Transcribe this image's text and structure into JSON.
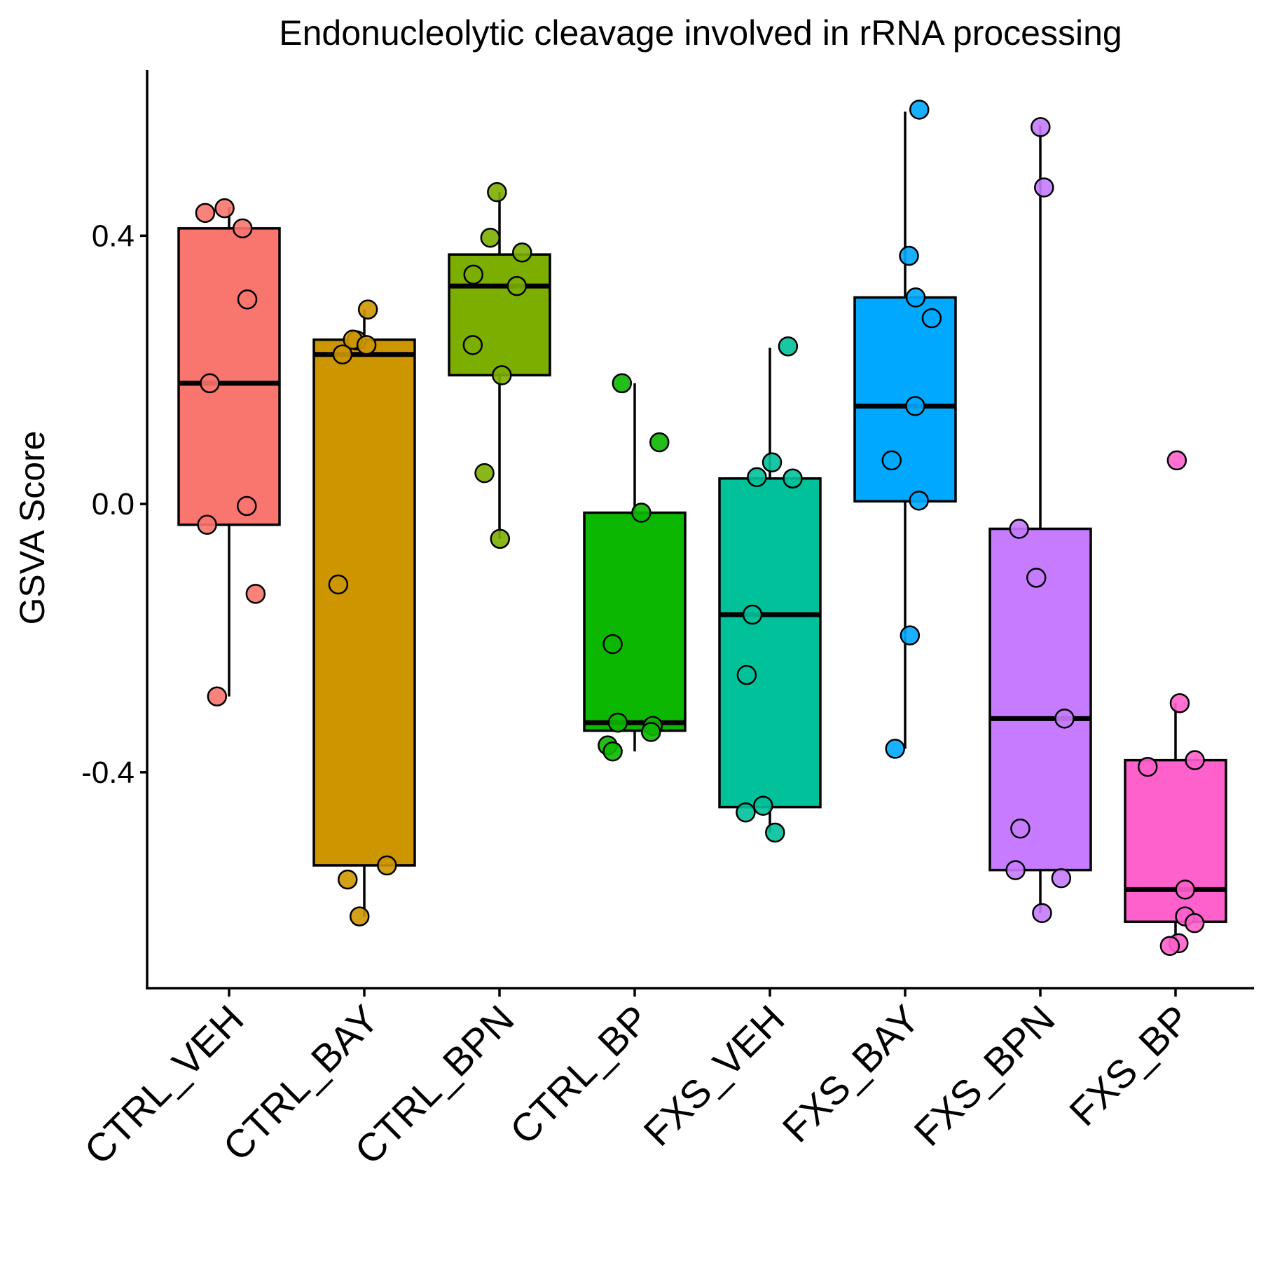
{
  "chart_data": {
    "type": "box",
    "title": "Endonucleolytic cleavage involved in rRNA processing",
    "xlabel": "",
    "ylabel": "GSVA Score",
    "ylim": [
      -0.722,
      0.647
    ],
    "yticks": [
      {
        "value": 0.4,
        "label": "0.4"
      },
      {
        "value": 0.0,
        "label": "0.0"
      },
      {
        "value": -0.4,
        "label": "-0.4"
      }
    ],
    "grid": false,
    "legend": "none",
    "categories": [
      "CTRL_VEH",
      "CTRL_BAY",
      "CTRL_BPN",
      "CTRL_BP",
      "FXS_VEH",
      "FXS_BAY",
      "FXS_BPN",
      "FXS_BP"
    ],
    "series": [
      {
        "category": "CTRL_VEH",
        "color": "#F8766D",
        "whisker_low": -0.287,
        "q1": -0.031,
        "median": 0.18,
        "q3": 0.411,
        "whisker_high": 0.443,
        "points": [
          0.411,
          0.434,
          0.441,
          0.305,
          0.18,
          -0.003,
          -0.031,
          -0.134,
          -0.287
        ]
      },
      {
        "category": "CTRL_BAY",
        "color": "#CD9600",
        "whisker_low": -0.615,
        "q1": -0.539,
        "median": 0.223,
        "q3": 0.245,
        "whisker_high": 0.29,
        "points": [
          0.29,
          0.244,
          0.245,
          0.237,
          0.223,
          -0.12,
          -0.539,
          -0.56,
          -0.615
        ]
      },
      {
        "category": "CTRL_BPN",
        "color": "#7CAE00",
        "whisker_low": -0.052,
        "q1": 0.192,
        "median": 0.325,
        "q3": 0.372,
        "whisker_high": 0.465,
        "points": [
          0.465,
          0.397,
          0.375,
          0.342,
          0.325,
          0.237,
          0.192,
          0.046,
          -0.052
        ]
      },
      {
        "category": "CTRL_BP",
        "color": "#0CB702",
        "whisker_low": -0.369,
        "q1": -0.338,
        "median": -0.326,
        "q3": -0.013,
        "whisker_high": 0.18,
        "points": [
          0.18,
          0.092,
          -0.013,
          -0.209,
          -0.326,
          -0.331,
          -0.34,
          -0.36,
          -0.369
        ]
      },
      {
        "category": "FXS_VEH",
        "color": "#00C19A",
        "whisker_low": -0.49,
        "q1": -0.452,
        "median": -0.165,
        "q3": 0.038,
        "whisker_high": 0.233,
        "points": [
          0.235,
          0.062,
          0.038,
          0.04,
          -0.165,
          -0.255,
          -0.45,
          -0.46,
          -0.49
        ]
      },
      {
        "category": "FXS_BAY",
        "color": "#00A9FF",
        "whisker_low": -0.365,
        "q1": 0.004,
        "median": 0.146,
        "q3": 0.308,
        "whisker_high": 0.585,
        "points": [
          0.588,
          0.37,
          0.308,
          0.277,
          0.146,
          0.065,
          0.005,
          -0.196,
          -0.365
        ]
      },
      {
        "category": "FXS_BPN",
        "color": "#C77CFF",
        "whisker_low": -0.61,
        "q1": -0.546,
        "median": -0.32,
        "q3": -0.037,
        "whisker_high": 0.565,
        "points": [
          0.562,
          0.472,
          -0.037,
          -0.11,
          -0.32,
          -0.484,
          -0.546,
          -0.558,
          -0.61
        ]
      },
      {
        "category": "FXS_BP",
        "color": "#FF61CC",
        "whisker_low": -0.659,
        "q1": -0.623,
        "median": -0.575,
        "q3": -0.382,
        "whisker_high": -0.297,
        "points": [
          0.065,
          -0.297,
          -0.382,
          -0.392,
          -0.575,
          -0.615,
          -0.625,
          -0.655,
          -0.659
        ]
      }
    ]
  }
}
